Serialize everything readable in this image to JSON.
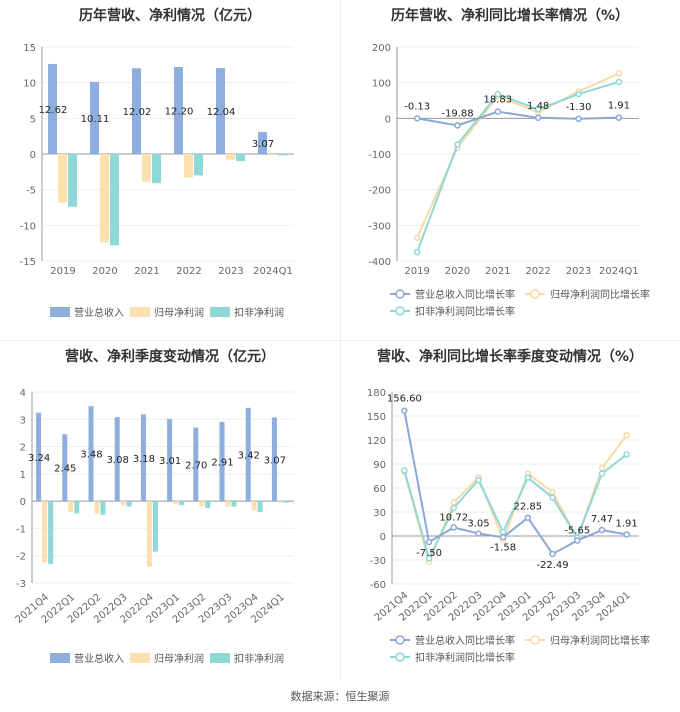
{
  "source": "数据来源：恒生聚源",
  "colors": {
    "revenue": "#8eaedd",
    "netprofit": "#fde0b0",
    "deducted": "#8fd8d8",
    "revenue_line": "#8aa7d6",
    "netprofit_line": "#fbd9a6",
    "deducted_line": "#8fd8d8",
    "axis": "#999999",
    "grid": "#eeeeee",
    "label": "#222222",
    "tick": "#666666"
  },
  "chart_data": [
    {
      "id": "annual-bars",
      "type": "bar",
      "title": "历年营收、净利情况（亿元）",
      "categories": [
        "2019",
        "2020",
        "2021",
        "2022",
        "2023",
        "2024Q1"
      ],
      "series": [
        {
          "name": "营业总收入",
          "values": [
            12.62,
            10.11,
            12.02,
            12.2,
            12.04,
            3.07
          ]
        },
        {
          "name": "归母净利润",
          "values": [
            -6.8,
            -12.4,
            -3.9,
            -3.3,
            -0.8,
            -0.15
          ]
        },
        {
          "name": "扣非净利润",
          "values": [
            -7.4,
            -12.8,
            -4.1,
            -3.0,
            -1.0,
            -0.2
          ]
        }
      ],
      "data_labels": [
        "12.62",
        "10.11",
        "12.02",
        "12.20",
        "12.04",
        "3.07"
      ],
      "yticks": [
        "15",
        "10",
        "5",
        "0",
        "-5",
        "-10",
        "-15"
      ],
      "ylim": [
        -15,
        15
      ]
    },
    {
      "id": "annual-lines",
      "type": "line",
      "title": "历年营收、净利同比增长率情况（%）",
      "categories": [
        "2019",
        "2020",
        "2021",
        "2022",
        "2023",
        "2024Q1"
      ],
      "series": [
        {
          "name": "营业总收入同比增长率",
          "values": [
            -0.13,
            -19.88,
            18.83,
            1.48,
            -1.3,
            1.91
          ]
        },
        {
          "name": "归母净利润同比增长率",
          "values": [
            -335,
            -82,
            62,
            17,
            75,
            126
          ]
        },
        {
          "name": "扣非净利润同比增长率",
          "values": [
            -375,
            -73,
            68,
            25,
            68,
            102
          ]
        }
      ],
      "data_labels": [
        "-0.13",
        "-19.88",
        "18.83",
        "1.48",
        "-1.30",
        "1.91"
      ],
      "yticks": [
        "200",
        "100",
        "0",
        "-100",
        "-200",
        "-300",
        "-400"
      ],
      "ylim": [
        -400,
        200
      ]
    },
    {
      "id": "quarterly-bars",
      "type": "bar",
      "title": "营收、净利季度变动情况（亿元）",
      "categories": [
        "2021Q4",
        "2022Q1",
        "2022Q2",
        "2022Q3",
        "2022Q4",
        "2023Q1",
        "2023Q2",
        "2023Q3",
        "2023Q4",
        "2024Q1"
      ],
      "series": [
        {
          "name": "营业总收入",
          "values": [
            3.24,
            2.45,
            3.48,
            3.08,
            3.18,
            3.01,
            2.7,
            2.91,
            3.42,
            3.07
          ]
        },
        {
          "name": "归母净利润",
          "values": [
            -2.25,
            -0.4,
            -0.45,
            -0.15,
            -2.4,
            -0.1,
            -0.2,
            -0.2,
            -0.35,
            -0.05
          ]
        },
        {
          "name": "扣非净利润",
          "values": [
            -2.3,
            -0.45,
            -0.5,
            -0.2,
            -1.85,
            -0.15,
            -0.25,
            -0.2,
            -0.4,
            -0.05
          ]
        }
      ],
      "data_labels": [
        "3.24",
        "2.45",
        "3.48",
        "3.08",
        "3.18",
        "3.01",
        "2.70",
        "2.91",
        "3.42",
        "3.07"
      ],
      "yticks": [
        "4",
        "3",
        "2",
        "1",
        "0",
        "-1",
        "-2",
        "-3"
      ],
      "ylim": [
        -3,
        4
      ]
    },
    {
      "id": "quarterly-lines",
      "type": "line",
      "title": "营收、净利同比增长率季度变动情况（%）",
      "categories": [
        "2021Q4",
        "2022Q1",
        "2022Q2",
        "2022Q3",
        "2022Q4",
        "2023Q1",
        "2023Q2",
        "2023Q3",
        "2023Q4",
        "2024Q1"
      ],
      "series": [
        {
          "name": "营业总收入同比增长率",
          "values": [
            156.6,
            -7.5,
            10.72,
            3.05,
            -1.58,
            22.85,
            -22.49,
            -5.65,
            7.47,
            1.91
          ]
        },
        {
          "name": "归母净利润同比增长率",
          "values": [
            80,
            -32,
            42,
            73,
            -5,
            78,
            55,
            -3,
            85,
            126
          ]
        },
        {
          "name": "扣非净利润同比增长率",
          "values": [
            82,
            -28,
            35,
            70,
            5,
            73,
            48,
            -2,
            78,
            102
          ]
        }
      ],
      "data_labels": [
        "156.60",
        "-7.50",
        "10.72",
        "3.05",
        "-1.58",
        "22.85",
        "-22.49",
        "-5.65",
        "7.47",
        "1.91"
      ],
      "yticks": [
        "180",
        "150",
        "120",
        "90",
        "60",
        "30",
        "0",
        "-30",
        "-60"
      ],
      "ylim": [
        -60,
        180
      ]
    }
  ]
}
